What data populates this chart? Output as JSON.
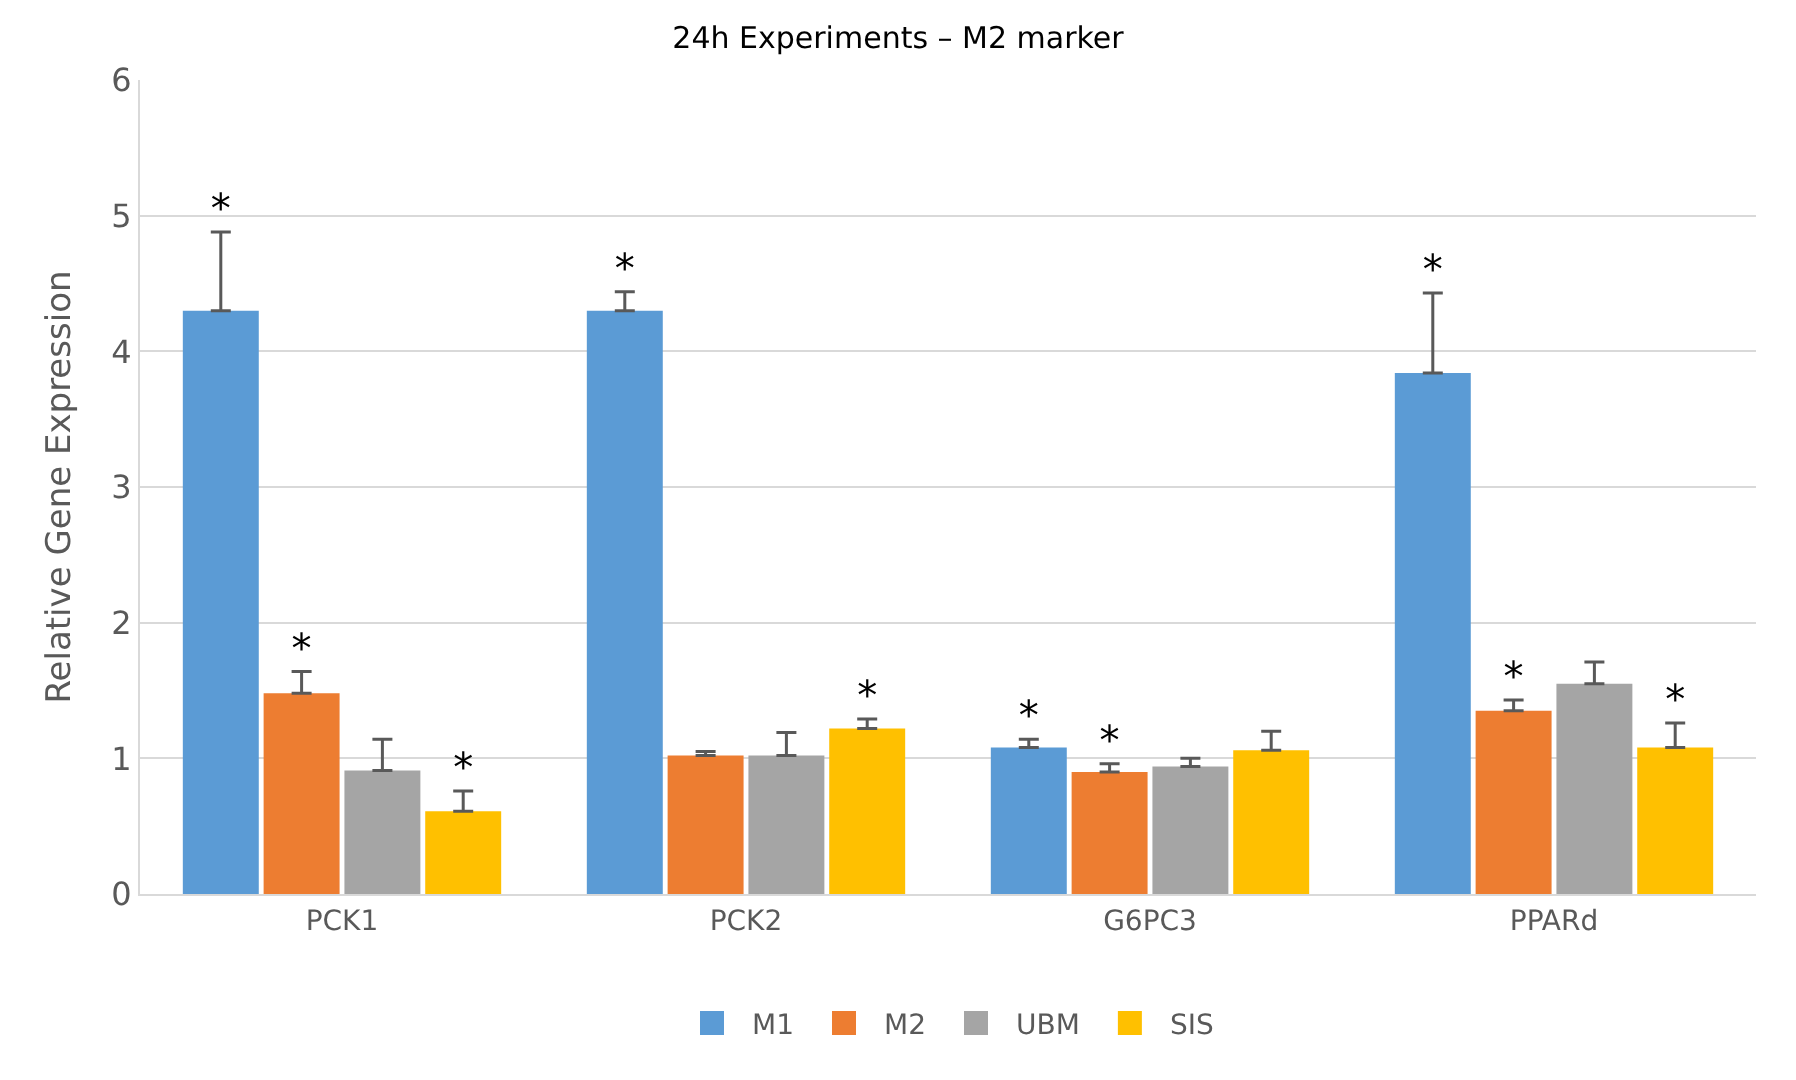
{
  "chart_data": {
    "type": "bar",
    "title": "24h Experiments – M2 marker",
    "ylabel": "Relative Gene Expression",
    "categories": [
      "PCK1",
      "PCK2",
      "G6PC3",
      "PPARd"
    ],
    "series": [
      {
        "name": "M1",
        "color": "#5b9bd5",
        "values": [
          4.3,
          4.3,
          1.08,
          3.84
        ],
        "errors": [
          0.58,
          0.14,
          0.06,
          0.59
        ],
        "value_labels": [
          "*",
          "*",
          "*",
          "*"
        ]
      },
      {
        "name": "M2",
        "color": "#ed7d31",
        "values": [
          1.48,
          1.02,
          0.9,
          1.35
        ],
        "errors": [
          0.16,
          0.03,
          0.06,
          0.08
        ],
        "value_labels": [
          "*",
          null,
          "*",
          "*"
        ]
      },
      {
        "name": "UBM",
        "color": "#a5a5a5",
        "values": [
          0.91,
          1.02,
          0.94,
          1.55
        ],
        "errors": [
          0.23,
          0.17,
          0.06,
          0.16
        ],
        "value_labels": [
          null,
          null,
          null,
          null
        ]
      },
      {
        "name": "SIS",
        "color": "#ffc000",
        "values": [
          0.61,
          1.22,
          1.06,
          1.08
        ],
        "errors": [
          0.15,
          0.07,
          0.14,
          0.18
        ],
        "value_labels": [
          "*",
          "*",
          null,
          "*"
        ]
      }
    ],
    "ylim": [
      0,
      6
    ],
    "yticks": [
      0,
      1,
      2,
      3,
      4,
      5,
      6
    ],
    "grid": "y",
    "legend": "bottom"
  }
}
